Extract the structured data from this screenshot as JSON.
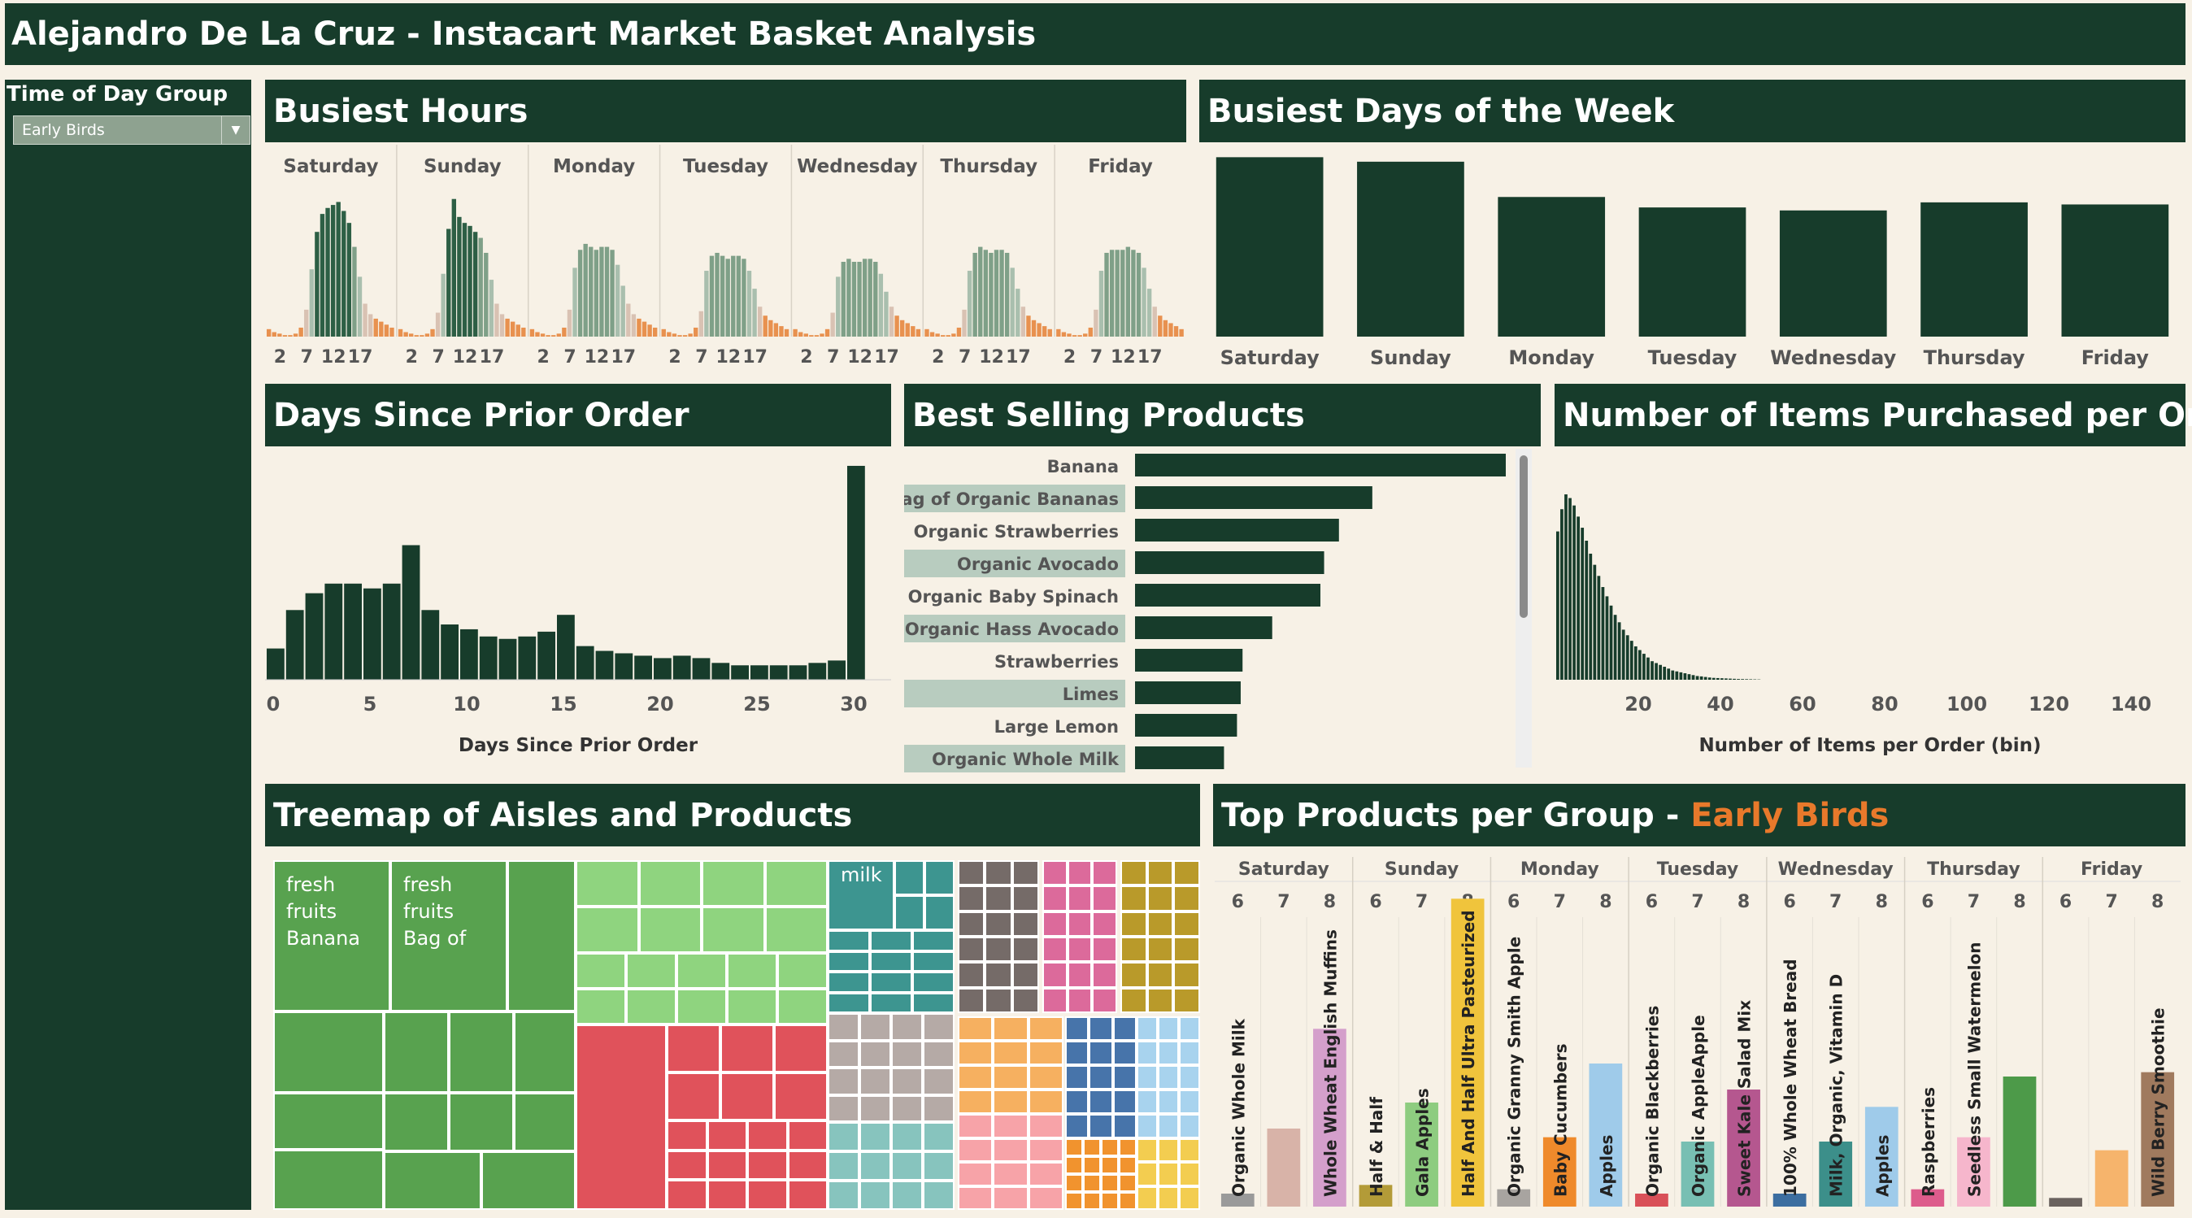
{
  "app_title": "Alejandro De La Cruz - Instacart Market Basket Analysis",
  "filter": {
    "label": "Time of Day Group",
    "value": "Early Birds"
  },
  "colors": {
    "dark_green": "#173c2b",
    "background": "#f7f1e6",
    "accent_orange": "#e8792b"
  },
  "panels": {
    "busiest_hours": "Busiest Hours",
    "busiest_days": "Busiest Days of the Week",
    "days_since_prior": "Days Since Prior Order",
    "best_selling": "Best Selling Products",
    "items_per_order": "Number of Items Purchased per Order",
    "treemap": "Treemap of Aisles and Products",
    "top_products_prefix": "Top Products per Group - ",
    "top_products_group": "Early Birds"
  },
  "chart_data": [
    {
      "id": "busiest_hours",
      "type": "bar",
      "panels": [
        "Saturday",
        "Sunday",
        "Monday",
        "Tuesday",
        "Wednesday",
        "Thursday",
        "Friday"
      ],
      "x_ticks": [
        2,
        7,
        12,
        17
      ],
      "hours": [
        0,
        1,
        2,
        3,
        4,
        5,
        6,
        7,
        8,
        9,
        10,
        11,
        12,
        13,
        14,
        15,
        16,
        17,
        18,
        19,
        20,
        21,
        22,
        23
      ],
      "values": [
        [
          5,
          3,
          2,
          1,
          1,
          2,
          6,
          18,
          45,
          70,
          82,
          86,
          88,
          90,
          84,
          76,
          60,
          40,
          22,
          15,
          12,
          10,
          8,
          6
        ],
        [
          5,
          3,
          2,
          1,
          1,
          2,
          5,
          16,
          42,
          72,
          92,
          80,
          76,
          74,
          70,
          66,
          56,
          38,
          22,
          15,
          12,
          10,
          8,
          6
        ],
        [
          5,
          3,
          2,
          1,
          1,
          2,
          6,
          18,
          46,
          58,
          62,
          60,
          58,
          60,
          60,
          58,
          48,
          34,
          22,
          15,
          12,
          10,
          8,
          6
        ],
        [
          5,
          3,
          2,
          1,
          1,
          2,
          6,
          17,
          44,
          54,
          56,
          54,
          52,
          54,
          54,
          52,
          44,
          32,
          20,
          14,
          11,
          9,
          7,
          5
        ],
        [
          5,
          3,
          2,
          1,
          1,
          2,
          5,
          16,
          40,
          50,
          52,
          50,
          50,
          52,
          52,
          50,
          42,
          30,
          20,
          14,
          11,
          9,
          7,
          5
        ],
        [
          5,
          3,
          2,
          1,
          1,
          2,
          6,
          18,
          44,
          56,
          60,
          58,
          56,
          58,
          58,
          56,
          46,
          32,
          20,
          14,
          11,
          9,
          7,
          5
        ],
        [
          5,
          3,
          2,
          1,
          1,
          2,
          6,
          18,
          44,
          56,
          58,
          58,
          58,
          60,
          58,
          56,
          46,
          32,
          20,
          14,
          11,
          9,
          7,
          5
        ]
      ]
    },
    {
      "id": "busiest_days",
      "type": "bar",
      "categories": [
        "Saturday",
        "Sunday",
        "Monday",
        "Tuesday",
        "Wednesday",
        "Thursday",
        "Friday"
      ],
      "values": [
        600,
        585,
        467,
        432,
        422,
        449,
        442
      ],
      "ylim": [
        0,
        620
      ]
    },
    {
      "id": "days_since_prior",
      "type": "bar",
      "xlabel": "Days Since Prior Order",
      "x_ticks": [
        0,
        5,
        10,
        15,
        20,
        25,
        30
      ],
      "x": [
        0,
        1,
        2,
        3,
        4,
        5,
        6,
        7,
        8,
        9,
        10,
        11,
        12,
        13,
        14,
        15,
        16,
        17,
        18,
        19,
        20,
        21,
        22,
        23,
        24,
        25,
        26,
        27,
        28,
        29,
        30
      ],
      "values": [
        26,
        58,
        72,
        80,
        80,
        76,
        80,
        112,
        58,
        46,
        42,
        36,
        34,
        36,
        40,
        54,
        28,
        24,
        22,
        20,
        18,
        20,
        18,
        14,
        12,
        12,
        12,
        12,
        14,
        16,
        178
      ],
      "ylim": [
        0,
        180
      ]
    },
    {
      "id": "best_selling",
      "type": "bar",
      "orientation": "horizontal",
      "categories": [
        "Banana",
        "Bag of Organic Bananas",
        "Organic Strawberries",
        "Organic Avocado",
        "Organic Baby Spinach",
        "Organic Hass Avocado",
        "Strawberries",
        "Limes",
        "Large Lemon",
        "Organic Whole Milk"
      ],
      "values": [
        100,
        64,
        55,
        51,
        50,
        37,
        29,
        28.5,
        27.5,
        24
      ]
    },
    {
      "id": "items_per_order",
      "type": "bar",
      "xlabel": "Number of Items per Order (bin)",
      "x_ticks": [
        20,
        40,
        60,
        80,
        100,
        120,
        140
      ],
      "x": [
        1,
        2,
        3,
        4,
        5,
        6,
        7,
        8,
        9,
        10,
        11,
        12,
        13,
        14,
        15,
        16,
        17,
        18,
        19,
        20,
        21,
        22,
        23,
        24,
        25,
        26,
        27,
        28,
        29,
        30,
        31,
        32,
        33,
        34,
        35,
        36,
        37,
        38,
        39,
        40,
        41,
        42,
        43,
        44,
        45,
        46,
        47,
        48,
        49,
        50
      ],
      "values": [
        80,
        92,
        100,
        98,
        94,
        88,
        82,
        75,
        68,
        62,
        56,
        50,
        45,
        40,
        35,
        31,
        27,
        24,
        21,
        18,
        16,
        14,
        12,
        10,
        9,
        8,
        7,
        6,
        5,
        4.5,
        4,
        3.5,
        3,
        2.5,
        2,
        1.8,
        1.5,
        1.2,
        1,
        0.9,
        0.8,
        0.7,
        0.6,
        0.5,
        0.4,
        0.35,
        0.3,
        0.25,
        0.2,
        0.15
      ],
      "ylim": [
        0,
        100
      ]
    },
    {
      "id": "treemap",
      "type": "treemap",
      "labels": [
        "fresh fruits Banana",
        "fresh fruits Bag of",
        "milk"
      ]
    },
    {
      "id": "top_products",
      "type": "bar",
      "days": [
        "Saturday",
        "Sunday",
        "Monday",
        "Tuesday",
        "Wednesday",
        "Thursday",
        "Friday"
      ],
      "hour_groups": [
        "6",
        "7",
        "8"
      ],
      "bars": [
        {
          "label": "Organic Whole Milk",
          "value": 6,
          "color": "#9a9a9a"
        },
        {
          "label": "",
          "value": 36,
          "color": "#d8b3a8"
        },
        {
          "label": "Whole Wheat English Muffins",
          "value": 82,
          "color": "#d49fcb"
        },
        {
          "label": "Half & Half",
          "value": 10,
          "color": "#b39b38"
        },
        {
          "label": "Gala Apples",
          "value": 48,
          "color": "#8ecc80"
        },
        {
          "label": "Half And Half Ultra Pasteurized",
          "value": 142,
          "color": "#f0c43c"
        },
        {
          "label": "Organic Granny Smith Apple",
          "value": 8,
          "color": "#a8a4a0"
        },
        {
          "label": "Baby Cucumbers",
          "value": 32,
          "color": "#ef8a2b"
        },
        {
          "label": "Apples",
          "value": 66,
          "color": "#9fcbea"
        },
        {
          "label": "Organic Blackberries",
          "value": 6,
          "color": "#d95058"
        },
        {
          "label": "Organic AppleApple",
          "value": 30,
          "color": "#78bfb3"
        },
        {
          "label": "Sweet Kale Salad Mix",
          "value": 54,
          "color": "#b5578f"
        },
        {
          "label": "100% Whole Wheat Bread",
          "value": 6,
          "color": "#3c6ea0"
        },
        {
          "label": "Milk, Organic, Vitamin D",
          "value": 30,
          "color": "#3c8f8a"
        },
        {
          "label": "Apples",
          "value": 46,
          "color": "#9fcbea"
        },
        {
          "label": "Raspberries",
          "value": 8,
          "color": "#dd5c8c"
        },
        {
          "label": "Seedless Small Watermelon",
          "value": 32,
          "color": "#f6b6cc"
        },
        {
          "label": "",
          "value": 60,
          "color": "#4d9a49"
        },
        {
          "label": "",
          "value": 4,
          "color": "#6a625e"
        },
        {
          "label": "",
          "value": 26,
          "color": "#f6b46c"
        },
        {
          "label": "Wild Berry Smoothie",
          "value": 62,
          "color": "#a07a5e"
        }
      ]
    }
  ]
}
